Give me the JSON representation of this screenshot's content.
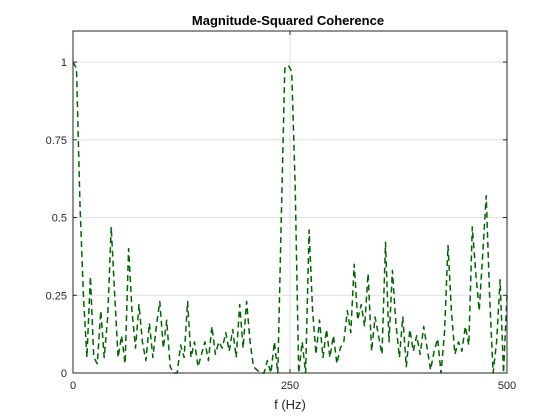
{
  "chart_data": {
    "type": "line",
    "title": "Magnitude-Squared Coherence",
    "xlabel": "f (Hz)",
    "ylabel": "",
    "xlim": [
      0,
      500
    ],
    "ylim": [
      0,
      1.1
    ],
    "x_ticks": [
      0,
      250,
      500
    ],
    "x_tick_labels": [
      "0",
      "250",
      "500"
    ],
    "y_ticks": [
      0,
      0.25,
      0.5,
      0.75,
      1
    ],
    "y_tick_labels": [
      "0",
      "0.25",
      "0.5",
      "0.75",
      "1"
    ],
    "grid": true,
    "line_color": "#006400",
    "line_style": "dashed",
    "series": [
      {
        "x": [
          0,
          4,
          8,
          12,
          16,
          20,
          24,
          28,
          32,
          36,
          40,
          44,
          48,
          52,
          56,
          60,
          64,
          68,
          72,
          76,
          80,
          84,
          88,
          92,
          96,
          100,
          104,
          108,
          112,
          116,
          120,
          124,
          128,
          132,
          136,
          140,
          144,
          148,
          152,
          156,
          160,
          164,
          168,
          172,
          176,
          180,
          184,
          188,
          192,
          196,
          200,
          204,
          208,
          212,
          216,
          220,
          224,
          228,
          232,
          236,
          240,
          244,
          248,
          252,
          256,
          260,
          264,
          268,
          272,
          276,
          280,
          284,
          288,
          292,
          296,
          300,
          304,
          308,
          312,
          316,
          320,
          324,
          328,
          332,
          336,
          340,
          344,
          348,
          352,
          356,
          360,
          364,
          368,
          372,
          376,
          380,
          384,
          388,
          392,
          396,
          400,
          404,
          408,
          412,
          416,
          420,
          424,
          428,
          432,
          436,
          440,
          444,
          448,
          452,
          456,
          460,
          464,
          468,
          472,
          476,
          480,
          484,
          488,
          492,
          496,
          500
        ],
        "y": [
          1.0,
          0.98,
          0.55,
          0.25,
          0.05,
          0.31,
          0.05,
          0.03,
          0.2,
          0.05,
          0.18,
          0.47,
          0.25,
          0.05,
          0.12,
          0.03,
          0.4,
          0.2,
          0.08,
          0.22,
          0.1,
          0.04,
          0.16,
          0.05,
          0.15,
          0.23,
          0.08,
          0.17,
          0.02,
          0.0,
          0.0,
          0.09,
          0.05,
          0.23,
          0.05,
          0.1,
          0.02,
          0.06,
          0.1,
          0.04,
          0.15,
          0.06,
          0.1,
          0.08,
          0.13,
          0.07,
          0.14,
          0.05,
          0.22,
          0.08,
          0.23,
          0.1,
          0.02,
          0.01,
          0.0,
          0.0,
          0.04,
          0.0,
          0.1,
          0.0,
          0.5,
          0.98,
          0.99,
          0.97,
          0.6,
          0.0,
          0.1,
          0.0,
          0.46,
          0.2,
          0.06,
          0.17,
          0.05,
          0.14,
          0.05,
          0.12,
          0.03,
          0.08,
          0.1,
          0.2,
          0.13,
          0.35,
          0.17,
          0.22,
          0.15,
          0.32,
          0.07,
          0.18,
          0.12,
          0.06,
          0.42,
          0.1,
          0.33,
          0.16,
          0.05,
          0.18,
          0.02,
          0.14,
          0.07,
          0.12,
          0.06,
          0.15,
          0.08,
          0.01,
          0.07,
          0.11,
          0.0,
          0.13,
          0.41,
          0.2,
          0.06,
          0.1,
          0.07,
          0.15,
          0.09,
          0.47,
          0.32,
          0.2,
          0.38,
          0.57,
          0.25,
          0.0,
          0.1,
          0.3,
          0.0,
          0.25
        ]
      }
    ]
  }
}
